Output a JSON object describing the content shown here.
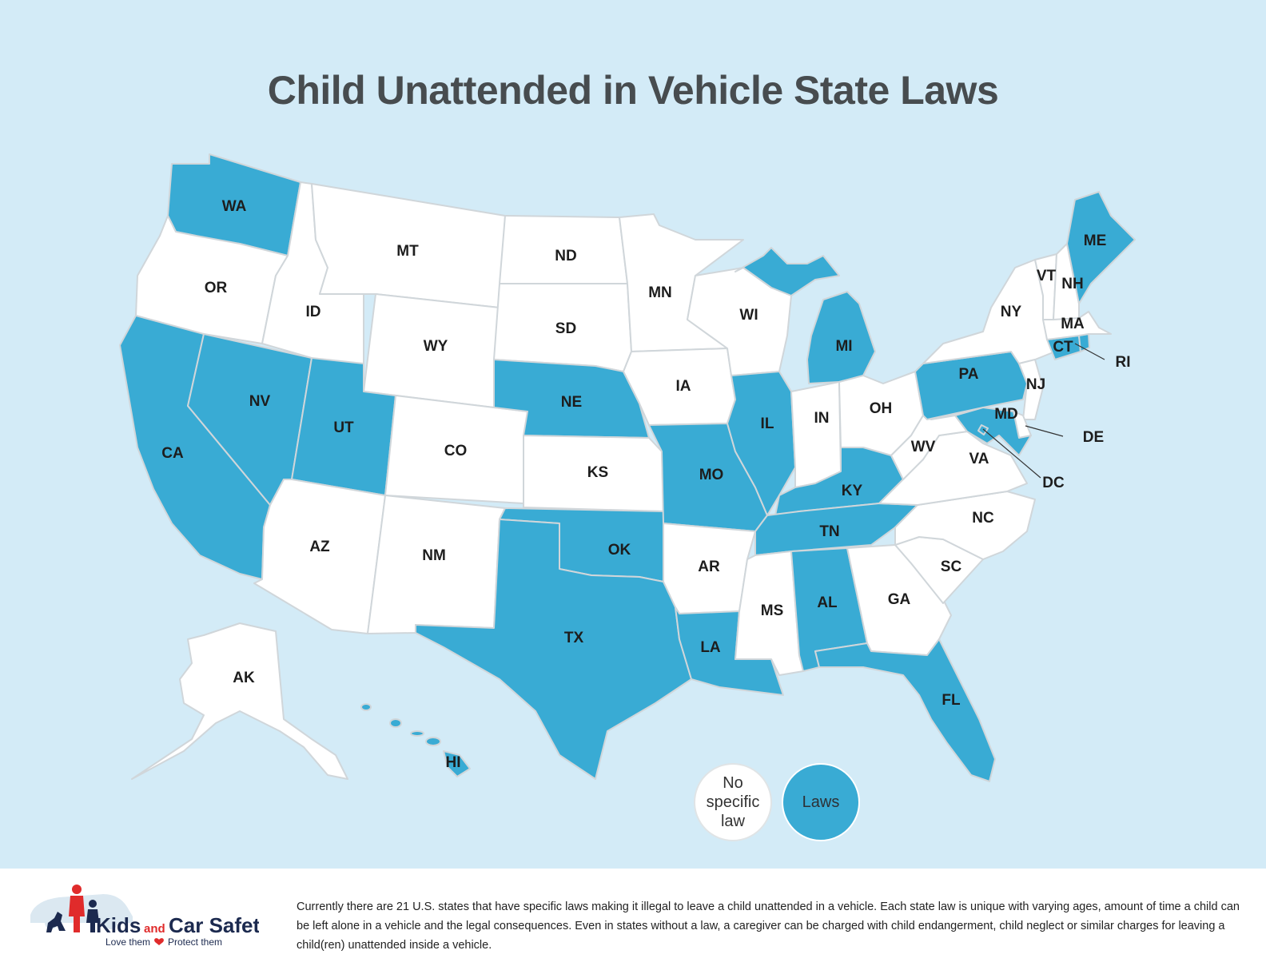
{
  "title": "Child Unattended in Vehicle State Laws",
  "colors": {
    "ocean": "#d3ebf7",
    "law_state": "#39abd4",
    "no_law_state": "#ffffff",
    "border": "#d0d6da"
  },
  "states": [
    {
      "abbr": "WA",
      "has_law": true
    },
    {
      "abbr": "OR",
      "has_law": false
    },
    {
      "abbr": "CA",
      "has_law": true
    },
    {
      "abbr": "NV",
      "has_law": true
    },
    {
      "abbr": "ID",
      "has_law": false
    },
    {
      "abbr": "MT",
      "has_law": false
    },
    {
      "abbr": "WY",
      "has_law": false
    },
    {
      "abbr": "UT",
      "has_law": true
    },
    {
      "abbr": "AZ",
      "has_law": false
    },
    {
      "abbr": "CO",
      "has_law": false
    },
    {
      "abbr": "NM",
      "has_law": false
    },
    {
      "abbr": "ND",
      "has_law": false
    },
    {
      "abbr": "SD",
      "has_law": false
    },
    {
      "abbr": "NE",
      "has_law": true
    },
    {
      "abbr": "KS",
      "has_law": false
    },
    {
      "abbr": "OK",
      "has_law": true
    },
    {
      "abbr": "TX",
      "has_law": true
    },
    {
      "abbr": "MN",
      "has_law": false
    },
    {
      "abbr": "IA",
      "has_law": false
    },
    {
      "abbr": "MO",
      "has_law": true
    },
    {
      "abbr": "AR",
      "has_law": false
    },
    {
      "abbr": "LA",
      "has_law": true
    },
    {
      "abbr": "WI",
      "has_law": false
    },
    {
      "abbr": "IL",
      "has_law": true
    },
    {
      "abbr": "MI",
      "has_law": true
    },
    {
      "abbr": "IN",
      "has_law": false
    },
    {
      "abbr": "OH",
      "has_law": false
    },
    {
      "abbr": "KY",
      "has_law": true
    },
    {
      "abbr": "TN",
      "has_law": true
    },
    {
      "abbr": "MS",
      "has_law": false
    },
    {
      "abbr": "AL",
      "has_law": true
    },
    {
      "abbr": "GA",
      "has_law": false
    },
    {
      "abbr": "FL",
      "has_law": true
    },
    {
      "abbr": "SC",
      "has_law": false
    },
    {
      "abbr": "NC",
      "has_law": false
    },
    {
      "abbr": "VA",
      "has_law": false
    },
    {
      "abbr": "WV",
      "has_law": false
    },
    {
      "abbr": "PA",
      "has_law": true
    },
    {
      "abbr": "NY",
      "has_law": false
    },
    {
      "abbr": "NJ",
      "has_law": false
    },
    {
      "abbr": "DE",
      "has_law": false
    },
    {
      "abbr": "MD",
      "has_law": true
    },
    {
      "abbr": "DC",
      "has_law": true
    },
    {
      "abbr": "CT",
      "has_law": true
    },
    {
      "abbr": "RI",
      "has_law": true
    },
    {
      "abbr": "MA",
      "has_law": false
    },
    {
      "abbr": "VT",
      "has_law": false
    },
    {
      "abbr": "NH",
      "has_law": false
    },
    {
      "abbr": "ME",
      "has_law": true
    },
    {
      "abbr": "AK",
      "has_law": false
    },
    {
      "abbr": "HI",
      "has_law": true
    }
  ],
  "legend": {
    "no_law_label": "No specific law",
    "law_label": "Laws"
  },
  "footer": {
    "description": "Currently there are 21 U.S. states that have specific laws making it illegal to leave a child unattended in a vehicle. Each state law is unique with varying ages, amount of time a child can be left alone in a vehicle and the legal consequences. Even in states without a law, a caregiver can be charged with child endangerment, child neglect or similar charges for leaving a child(ren) unattended inside a vehicle.",
    "logo": {
      "brand_kids": "Kids",
      "brand_and": "and",
      "brand_car_safety": "Car Safety",
      "tagline_left": "Love them",
      "tagline_right": "Protect them",
      "icon": "family-dog-car-icon"
    }
  }
}
